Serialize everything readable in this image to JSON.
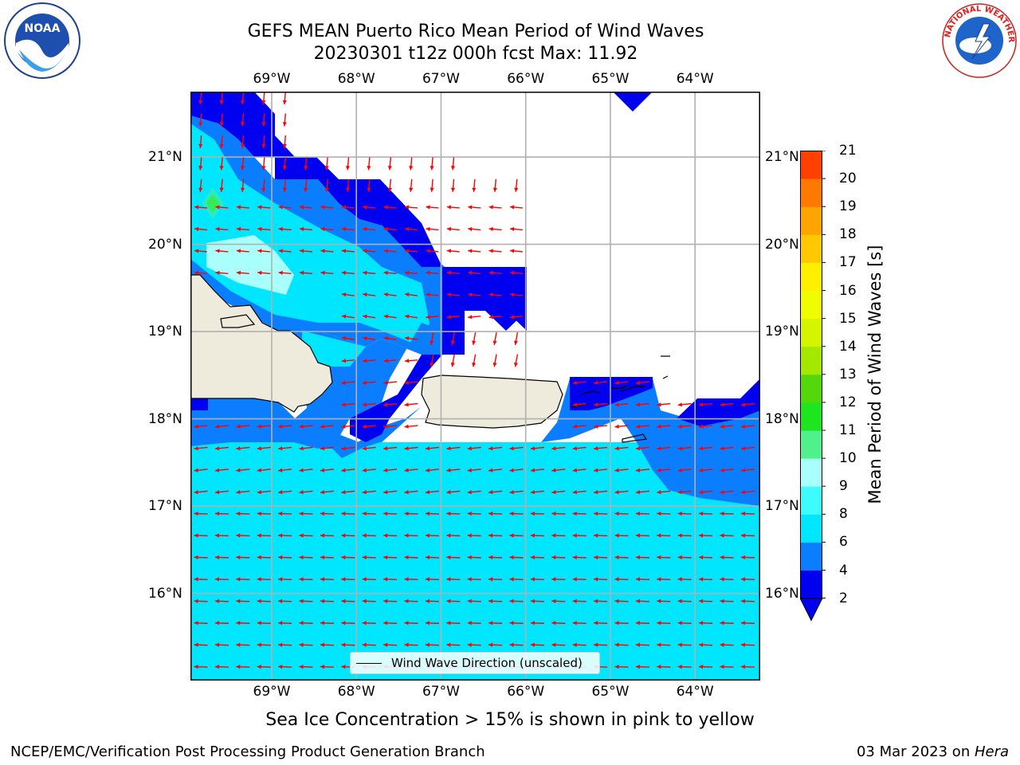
{
  "title": {
    "line1": "GEFS MEAN Puerto Rico Mean Period of Wind Waves",
    "line2": "20230301 t12z 000h fcst   Max: 11.92"
  },
  "map": {
    "lon_range": [
      -69.96,
      -63.23
    ],
    "lat_range": [
      15.0,
      21.75
    ],
    "lon_ticks": [
      {
        "value": -69,
        "label": "69°W"
      },
      {
        "value": -68,
        "label": "68°W"
      },
      {
        "value": -67,
        "label": "67°W"
      },
      {
        "value": -66,
        "label": "66°W"
      },
      {
        "value": -65,
        "label": "65°W"
      },
      {
        "value": -64,
        "label": "64°W"
      }
    ],
    "lat_ticks": [
      {
        "value": 21,
        "label": "21°N"
      },
      {
        "value": 20,
        "label": "20°N"
      },
      {
        "value": 19,
        "label": "19°N"
      },
      {
        "value": 18,
        "label": "18°N"
      },
      {
        "value": 17,
        "label": "17°N"
      },
      {
        "value": 16,
        "label": "16°N"
      }
    ],
    "colors": {
      "land": "#efebdc",
      "no_data": "#ffffff",
      "gridline": "#b0b0b0",
      "arrow": "#ff0000",
      "coast": "#000000"
    }
  },
  "colorbar": {
    "label": "Mean Period of Wind Waves [s]",
    "levels": [
      "2",
      "4",
      "6",
      "8",
      "9",
      "10",
      "11",
      "12",
      "13",
      "14",
      "15",
      "16",
      "17",
      "18",
      "19",
      "20",
      "21"
    ],
    "colors": [
      "#0000f0",
      "#0a7eff",
      "#00e6ff",
      "#3cfcff",
      "#a8fffc",
      "#50f08c",
      "#1ee61e",
      "#54d80c",
      "#a4e800",
      "#d4f400",
      "#f0fc00",
      "#fff000",
      "#ffc800",
      "#ffa400",
      "#ff7800",
      "#ff4000"
    ],
    "extend_min_color": "#0000f0"
  },
  "legend": {
    "label": "Wind Wave Direction (unscaled)"
  },
  "subtitle": "Sea Ice Concentration > 15% is shown in pink to yellow",
  "footer": {
    "left": "NCEP/EMC/Verification Post Processing Product Generation Branch",
    "date": "03 Mar 2023 on ",
    "host": "Hera"
  },
  "logos": {
    "noaa": "NOAA",
    "nws": "NATIONAL WEATHER SERVICE"
  }
}
